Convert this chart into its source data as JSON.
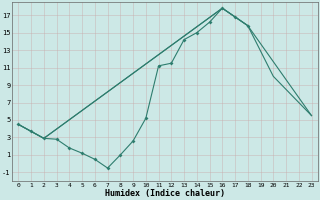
{
  "xlabel": "Humidex (Indice chaleur)",
  "bg_color": "#cce8e6",
  "grid_color": "#aacfcc",
  "line_color": "#2e7d6e",
  "xlim": [
    -0.5,
    23.5
  ],
  "ylim": [
    -2.0,
    18.5
  ],
  "xticks": [
    0,
    1,
    2,
    3,
    4,
    5,
    6,
    7,
    8,
    9,
    10,
    11,
    12,
    13,
    14,
    15,
    16,
    17,
    18,
    19,
    20,
    21,
    22,
    23
  ],
  "yticks": [
    -1,
    1,
    3,
    5,
    7,
    9,
    11,
    13,
    15,
    17
  ],
  "line1_x": [
    0,
    1,
    2,
    3,
    4,
    5,
    6,
    7,
    8,
    9,
    10,
    11,
    12,
    13,
    14,
    15,
    16,
    17,
    18
  ],
  "line1_y": [
    4.5,
    3.7,
    2.9,
    2.8,
    1.8,
    1.2,
    0.5,
    -0.5,
    1.0,
    2.6,
    5.2,
    11.2,
    11.5,
    14.2,
    15.0,
    16.2,
    17.8,
    16.8,
    15.8
  ],
  "line2_x": [
    0,
    2,
    16,
    18,
    20,
    22,
    23
  ],
  "line2_y": [
    4.5,
    2.9,
    17.8,
    15.8,
    10.0,
    7.0,
    5.5
  ],
  "line3_x": [
    0,
    2,
    16,
    18,
    23
  ],
  "line3_y": [
    4.5,
    2.9,
    17.8,
    15.8,
    5.5
  ]
}
